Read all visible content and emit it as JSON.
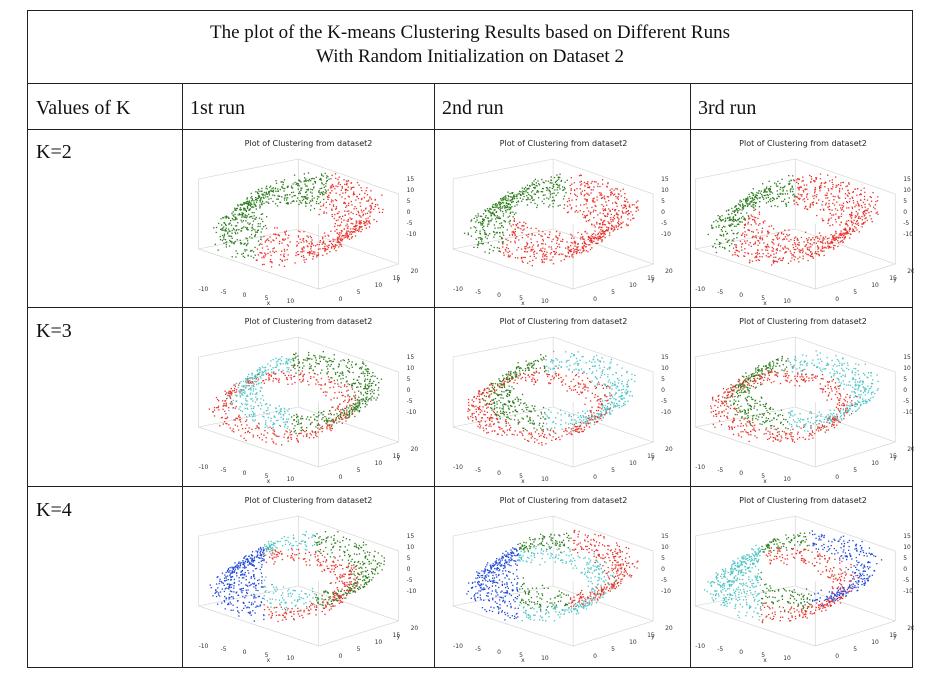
{
  "table": {
    "title_line1": "The plot of the K-means Clustering Results based on Different Runs",
    "title_line2": "With  Random Initialization on Dataset 2",
    "col_header_k": "Values of K",
    "col_headers": [
      "1st run",
      "2nd run",
      "3rd run"
    ],
    "row_labels": [
      "K=2",
      "K=3",
      "K=4"
    ]
  },
  "chart_data": {
    "type": "scatter",
    "subplot_title": "Plot of Clustering from dataset2",
    "x_ticks": [
      "-10",
      "-5",
      "0",
      "5",
      "10"
    ],
    "y_ticks": [
      "0",
      "5",
      "10",
      "15",
      "20"
    ],
    "z_ticks": [
      "15",
      "10",
      "5",
      "0",
      "-5",
      "-10"
    ],
    "xlabel": "x",
    "ylabel": "y",
    "xlim": [
      -12,
      12
    ],
    "ylim": [
      0,
      22
    ],
    "zlim": [
      -12,
      17
    ],
    "cluster_colors": {
      "green": "#2e7d1e",
      "red": "#e8322a",
      "cyan": "#4ec4c4",
      "blue": "#1f48d9"
    },
    "panels": [
      {
        "k": 2,
        "run": 1,
        "clusters": [
          "green",
          "red"
        ]
      },
      {
        "k": 2,
        "run": 2,
        "clusters": [
          "green",
          "red"
        ]
      },
      {
        "k": 2,
        "run": 3,
        "clusters": [
          "green",
          "red"
        ]
      },
      {
        "k": 3,
        "run": 1,
        "clusters": [
          "red",
          "green",
          "cyan"
        ]
      },
      {
        "k": 3,
        "run": 2,
        "clusters": [
          "red",
          "cyan",
          "green"
        ]
      },
      {
        "k": 3,
        "run": 3,
        "clusters": [
          "red",
          "cyan",
          "green"
        ]
      },
      {
        "k": 4,
        "run": 1,
        "clusters": [
          "blue",
          "red",
          "cyan",
          "green"
        ]
      },
      {
        "k": 4,
        "run": 2,
        "clusters": [
          "blue",
          "cyan",
          "green",
          "red"
        ]
      },
      {
        "k": 4,
        "run": 3,
        "clusters": [
          "cyan",
          "red",
          "green",
          "blue"
        ]
      }
    ]
  }
}
